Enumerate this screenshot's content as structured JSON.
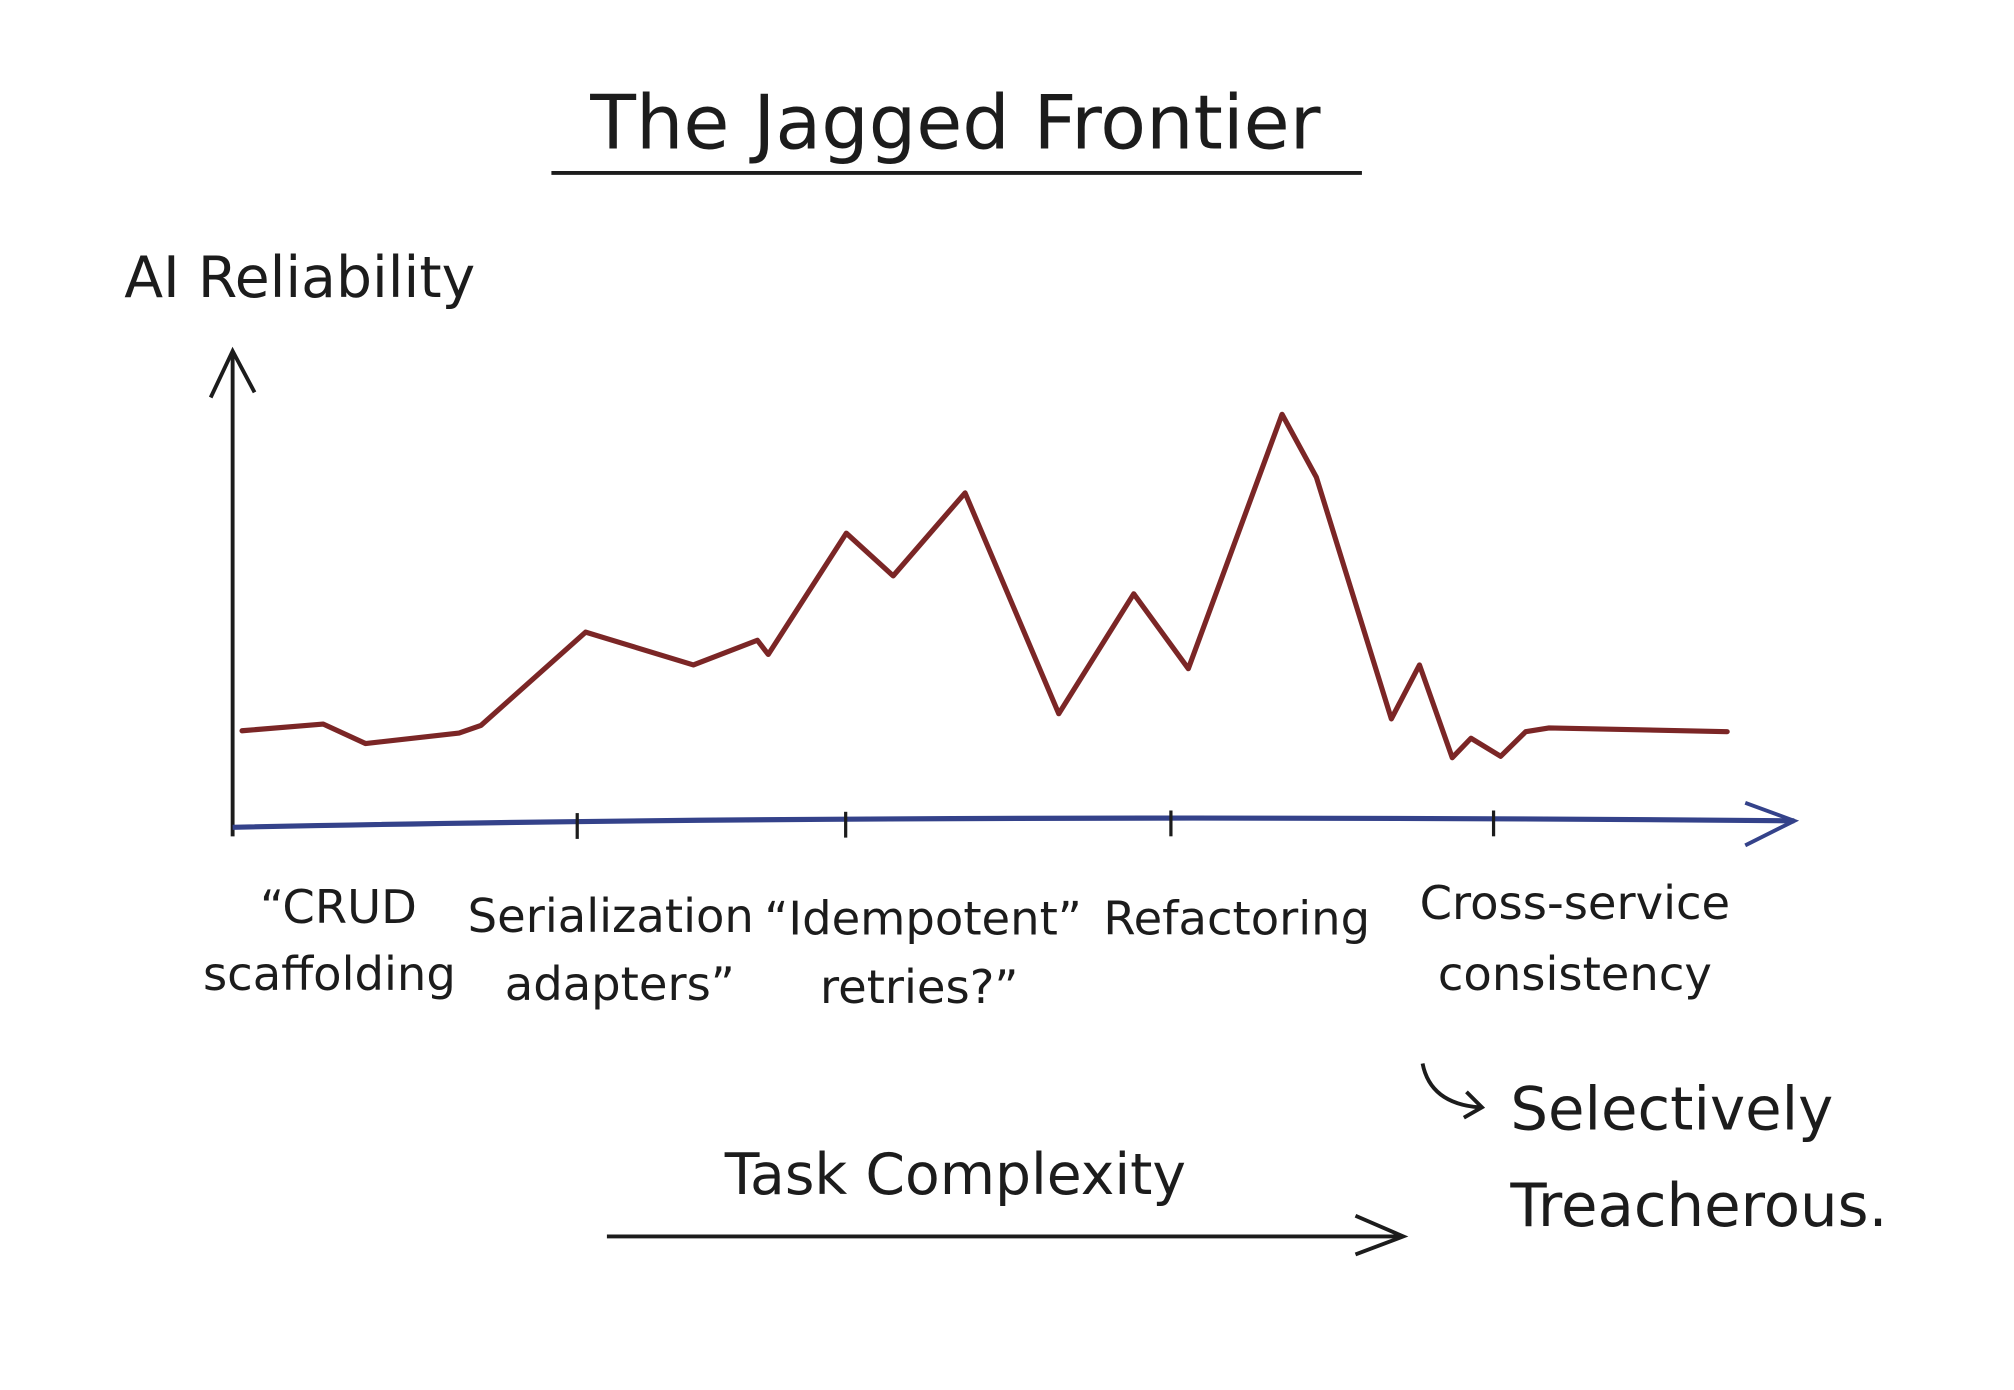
{
  "chart_data": {
    "type": "line",
    "title": "The Jagged Frontier",
    "y_label": "AI Reliability",
    "x_label": "Task Complexity",
    "x_labels": [
      [
        "“CRUD",
        "scaffolding"
      ],
      [
        "Serialization",
        "adapters”"
      ],
      [
        "“Idempotent”",
        "retries?”"
      ],
      [
        "Refactoring"
      ],
      [
        "Cross-service",
        "consistency"
      ]
    ],
    "annotation": [
      "Selectively",
      "Treacherous."
    ],
    "x": [
      0.6,
      5.8,
      8.5,
      14.5,
      15.9,
      22.6,
      29.5,
      33.6,
      34.3,
      39.3,
      42.3,
      46.9,
      52.9,
      57.7,
      61.2,
      67.2,
      69.4,
      74.2,
      76.0,
      78.1,
      79.3,
      81.2,
      82.8,
      84.3,
      95.7
    ],
    "values": [
      19.3,
      20.7,
      16.6,
      18.8,
      20.4,
      40.1,
      33.2,
      38.4,
      35.4,
      61.0,
      52.0,
      69.5,
      22.9,
      48.2,
      32.4,
      86.1,
      72.8,
      21.8,
      33.2,
      13.6,
      17.7,
      13.9,
      19.1,
      19.9,
      19.1
    ],
    "color": "#7b2626",
    "xlim": [
      0,
      100
    ],
    "ylim": [
      0,
      100
    ]
  }
}
